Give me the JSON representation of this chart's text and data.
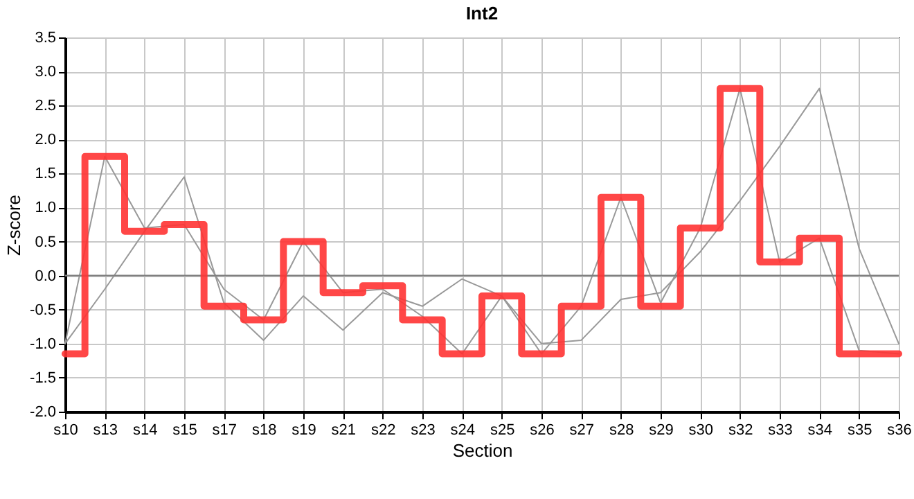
{
  "chart_data": {
    "type": "line",
    "title": "Int2",
    "xlabel": "Section",
    "ylabel": "Z-score",
    "categories": [
      "s10",
      "s13",
      "s14",
      "s15",
      "s17",
      "s18",
      "s19",
      "s21",
      "s22",
      "s23",
      "s24",
      "s25",
      "s26",
      "s27",
      "s28",
      "s29",
      "s30",
      "s32",
      "s33",
      "s34",
      "s35",
      "s36"
    ],
    "series": [
      {
        "type": "line",
        "color": "#999999",
        "values": [
          -1.0,
          -0.2,
          0.65,
          1.45,
          -0.4,
          -0.95,
          -0.3,
          -0.8,
          -0.25,
          -0.45,
          -0.05,
          -0.3,
          -1.0,
          -0.95,
          -0.35,
          -0.25,
          0.35,
          1.1,
          1.9,
          2.75,
          0.4,
          -1.0
        ]
      },
      {
        "type": "line",
        "color": "#999999",
        "values": [
          -1.0,
          1.75,
          0.7,
          0.75,
          -0.2,
          -0.65,
          0.5,
          -0.25,
          -0.2,
          -0.6,
          -1.15,
          -0.3,
          -1.15,
          -0.45,
          1.15,
          -0.4,
          0.7,
          2.75,
          0.2,
          0.55,
          -1.1,
          -1.15
        ]
      },
      {
        "type": "step",
        "color": "#ff3333",
        "values": [
          -1.15,
          1.75,
          0.65,
          0.75,
          -0.45,
          -0.65,
          0.5,
          -0.25,
          -0.15,
          -0.65,
          -1.15,
          -0.3,
          -1.15,
          -0.45,
          1.15,
          -0.45,
          0.7,
          2.75,
          0.2,
          0.55,
          -1.15,
          -1.15
        ]
      }
    ],
    "ylim": [
      -2,
      3.5
    ],
    "yticks": [
      {
        "value": -2,
        "label": "-2.0"
      },
      -1.5,
      {
        "value": -1,
        "label": "-1.0"
      },
      -0.5,
      {
        "value": 0,
        "label": "0.0"
      },
      0.5,
      {
        "value": 1,
        "label": "1.0"
      },
      1.5,
      {
        "value": 2,
        "label": "2.0"
      },
      2.5,
      {
        "value": 3,
        "label": "3.0"
      },
      3.5
    ],
    "ref_lines": [
      {
        "axis": "y",
        "value": 0,
        "color": "#808080"
      }
    ],
    "grid": true
  }
}
